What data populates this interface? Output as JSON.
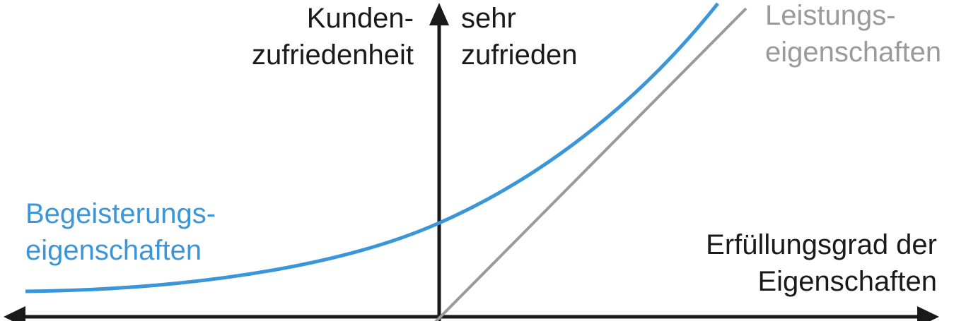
{
  "y_axis": {
    "line1": "Kunden-",
    "line2": "zufriedenheit"
  },
  "y_top": {
    "line1": "sehr",
    "line2": "zufrieden"
  },
  "x_axis": {
    "line1": "Erfüllungsgrad der",
    "line2": "Eigenschaften"
  },
  "curves": {
    "begeisterung": {
      "line1": "Begeisterungs-",
      "line2": "eigenschaften",
      "color": "#3a96d8"
    },
    "leistung": {
      "line1": "Leistungs-",
      "line2": "eigenschaften",
      "color": "#9a9a9a"
    }
  }
}
